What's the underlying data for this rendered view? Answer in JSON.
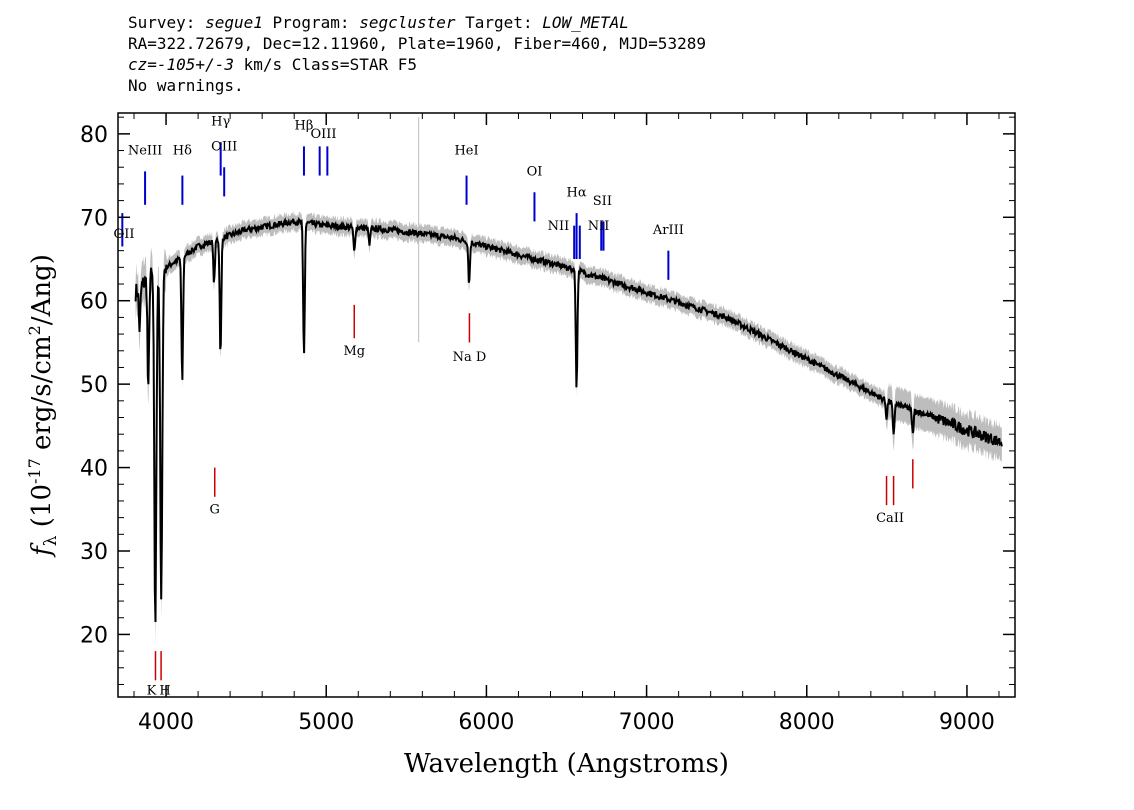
{
  "header": {
    "survey_label": "Survey: ",
    "survey": "segue1",
    "program_label": " Program: ",
    "program": "segcluster",
    "target_label": " Target: ",
    "target": "LOW_METAL",
    "line2": "RA=322.72679, Dec=12.11960, Plate=1960, Fiber=460, MJD=53289",
    "cz_value": "cz=-105+/-3",
    "cz_rest": " km/s Class=STAR F5",
    "line4": "No warnings."
  },
  "chart_data": {
    "type": "line",
    "xlabel": "Wavelength (Angstroms)",
    "ylabel_prefix": "f",
    "ylabel_sub": "λ",
    "ylabel_main": " (10",
    "ylabel_exp": "-17",
    "ylabel_rest": " erg/s/cm",
    "ylabel_exp2": "2",
    "ylabel_end": "/Ang)",
    "xlim": [
      3700,
      9300
    ],
    "ylim": [
      12.5,
      82.5
    ],
    "x_ticks": [
      4000,
      5000,
      6000,
      7000,
      8000,
      9000
    ],
    "y_ticks": [
      20,
      30,
      40,
      50,
      60,
      70,
      80
    ],
    "colors": {
      "spectrum": "#000000",
      "error_band": "#bdbdbd",
      "emission": "#0000cc",
      "absorption": "#cc0000"
    },
    "continuum": [
      [
        3810,
        61
      ],
      [
        3900,
        63
      ],
      [
        4000,
        64
      ],
      [
        4200,
        66.5
      ],
      [
        4500,
        68.5
      ],
      [
        4800,
        69.5
      ],
      [
        5000,
        69
      ],
      [
        5400,
        68.5
      ],
      [
        5800,
        67.5
      ],
      [
        6000,
        66.5
      ],
      [
        6500,
        64
      ],
      [
        7000,
        61
      ],
      [
        7500,
        58
      ],
      [
        8000,
        53
      ],
      [
        8500,
        48
      ],
      [
        8800,
        46
      ],
      [
        9000,
        44.5
      ],
      [
        9220,
        43
      ]
    ],
    "absorption_features": [
      {
        "x": 3835,
        "depth": 5
      },
      {
        "x": 3889,
        "depth": 14
      },
      {
        "x": 3933,
        "depth": 42
      },
      {
        "x": 3970,
        "depth": 40
      },
      {
        "x": 4101,
        "depth": 15
      },
      {
        "x": 4300,
        "depth": 5
      },
      {
        "x": 4340,
        "depth": 14
      },
      {
        "x": 4861,
        "depth": 16
      },
      {
        "x": 5175,
        "depth": 3
      },
      {
        "x": 5270,
        "depth": 2
      },
      {
        "x": 5892,
        "depth": 5
      },
      {
        "x": 6563,
        "depth": 14
      },
      {
        "x": 8498,
        "depth": 2
      },
      {
        "x": 8542,
        "depth": 4
      },
      {
        "x": 8662,
        "depth": 3
      }
    ],
    "emission_lines": [
      {
        "label": "OII",
        "x": 3727
      },
      {
        "label": "NeIII",
        "x": 3869
      },
      {
        "label": "Hδ",
        "x": 4102
      },
      {
        "label": "Hγ",
        "x": 4341
      },
      {
        "label": "OIII",
        "x": 4363
      },
      {
        "label": "Hβ",
        "x": 4861
      },
      {
        "label": "OIII",
        "x": 4959
      },
      {
        "label": "OIII",
        "x": 5007
      },
      {
        "label": "HeI",
        "x": 5876
      },
      {
        "label": "OI",
        "x": 6300
      },
      {
        "label": "NII",
        "x": 6548
      },
      {
        "label": "Hα",
        "x": 6563
      },
      {
        "label": "NII",
        "x": 6583
      },
      {
        "label": "SII",
        "x": 6717
      },
      {
        "label": "SII",
        "x": 6731
      },
      {
        "label": "ArIII",
        "x": 7136
      }
    ],
    "absorption_lines": [
      {
        "label": "K",
        "x": 3934
      },
      {
        "label": "H",
        "x": 3969
      },
      {
        "label": "G",
        "x": 4304
      },
      {
        "label": "Mg",
        "x": 5175
      },
      {
        "label": "Na D",
        "x": 5894
      },
      {
        "label": "CaII",
        "x": 8498
      },
      {
        "label": "CaII",
        "x": 8542
      },
      {
        "label": "CaII",
        "x": 8662
      }
    ]
  }
}
